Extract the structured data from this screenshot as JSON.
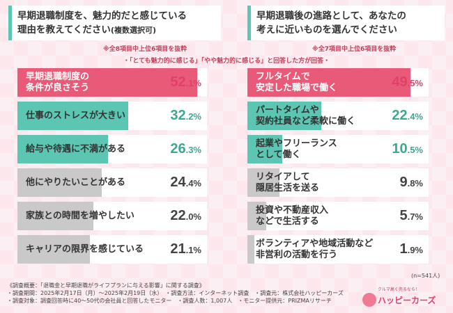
{
  "left_panel": {
    "title_line1": "早期退職制度を、魅力的だと感じている",
    "title_line2": "理由を教えてください",
    "title_paren": "(複数選択可)",
    "note": "※全8項目中上位6項目を抜粋"
  },
  "right_panel": {
    "title_line1": "早期退職後の進路として、あなたの",
    "title_line2": "考えに近いものを選んでください",
    "note": "※全7項目中上位6項目を抜粋"
  },
  "center_note": "・「とても魅力的に感じる」「やや魅力的に感じる」と回答した方が回答・",
  "n_label": "(n=541人)",
  "colors": {
    "pink": "#e85a77",
    "teal": "#5cc6b2",
    "gray": "#c9c9c9",
    "pink_text": "#e0416a",
    "teal_text": "#3aa893"
  },
  "chart_data": [
    {
      "type": "bar",
      "orientation": "horizontal",
      "categories": [
        "早期退職制度の条件が良さそう",
        "仕事のストレスが大きい",
        "給与や待遇に不満がある",
        "他にやりたいことがある",
        "家族との時間を増やしたい",
        "キャリアの限界を感じている"
      ],
      "label_lines": [
        [
          "早期退職制度の",
          "条件が良さそう"
        ],
        [
          "仕事のストレスが大きい"
        ],
        [
          "給与や待遇に不満がある"
        ],
        [
          "他にやりたいことがある"
        ],
        [
          "家族との時間を増やしたい"
        ],
        [
          "キャリアの限界を感じている"
        ]
      ],
      "values": [
        52.1,
        32.2,
        26.3,
        24.4,
        22.0,
        21.1
      ],
      "value_labels": [
        [
          "52",
          ".1%"
        ],
        [
          "32",
          ".2%"
        ],
        [
          "26",
          ".3%"
        ],
        [
          "24",
          ".4%"
        ],
        [
          "22",
          ".0%"
        ],
        [
          "21",
          ".1%"
        ]
      ],
      "color_roles": [
        "pink",
        "teal",
        "teal",
        "gray",
        "gray",
        "gray"
      ],
      "unit": "%"
    },
    {
      "type": "bar",
      "orientation": "horizontal",
      "categories": [
        "フルタイムで安定した職場で働く",
        "パートタイムや契約社員など柔軟に働く",
        "起業やフリーランスとして働く",
        "リタイアして隠居生活を送る",
        "投資や不動産収入などで生活する",
        "ボランティアや地域活動など非営利の活動を行う"
      ],
      "label_lines": [
        [
          "フルタイムで",
          "安定した職場で働く"
        ],
        [
          "パートタイムや",
          "契約社員など柔軟に働く"
        ],
        [
          "起業やフリーランス",
          "として働く"
        ],
        [
          "リタイアして",
          "隠居生活を送る"
        ],
        [
          "投資や不動産収入",
          "などで生活する"
        ],
        [
          "ボランティアや地域活動など",
          "非営利の活動を行う"
        ]
      ],
      "values": [
        49.5,
        22.4,
        10.5,
        9.8,
        5.7,
        1.9
      ],
      "value_labels": [
        [
          "49",
          ".5%"
        ],
        [
          "22",
          ".4%"
        ],
        [
          "10",
          ".5%"
        ],
        [
          "9",
          ".8%"
        ],
        [
          "5",
          ".7%"
        ],
        [
          "1",
          ".9%"
        ]
      ],
      "color_roles": [
        "pink",
        "teal",
        "teal",
        "gray",
        "gray",
        "gray"
      ],
      "unit": "%"
    }
  ],
  "footnotes": [
    "《調査概要：「退職金と早期退職がライフプランに与える影響」に関する調査》",
    "・調査期間：2025年2月17日（月）〜2025年2月19日（水）　・調査方法：インターネット調査　・調査元：株式会社ハッピーカーズ",
    "・調査対象：調査回答時に40〜50代の会社員と回答したモニター　・調査人数：1,007人　・モニター提供元：PRIZMAリサーチ"
  ],
  "logo": {
    "tagline": "クルマ高く売るなら！",
    "name": "ハッピーカーズ"
  }
}
